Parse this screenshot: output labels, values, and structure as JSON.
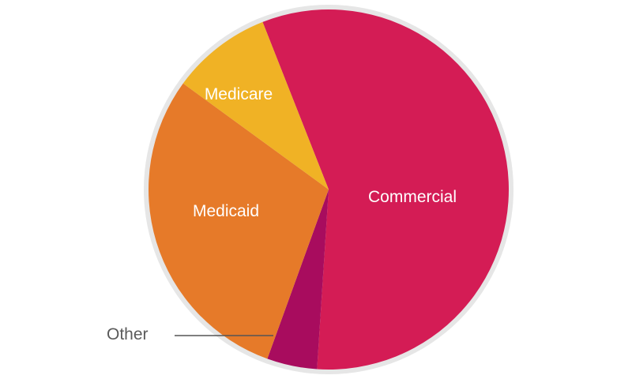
{
  "chart_data": {
    "type": "pie",
    "title": "",
    "start_angle_deg": -21.5,
    "direction": "clockwise",
    "slices": [
      {
        "label": "Commercial",
        "value": 57,
        "color": "#d41c55"
      },
      {
        "label": "Other",
        "value": 4.5,
        "color": "#a80c5e"
      },
      {
        "label": "Medicaid",
        "value": 29.5,
        "color": "#e67a29"
      },
      {
        "label": "Medicare",
        "value": 9,
        "color": "#f0b225"
      }
    ],
    "border_color": "#e6e6e6",
    "callout_line_color": "#555555"
  }
}
